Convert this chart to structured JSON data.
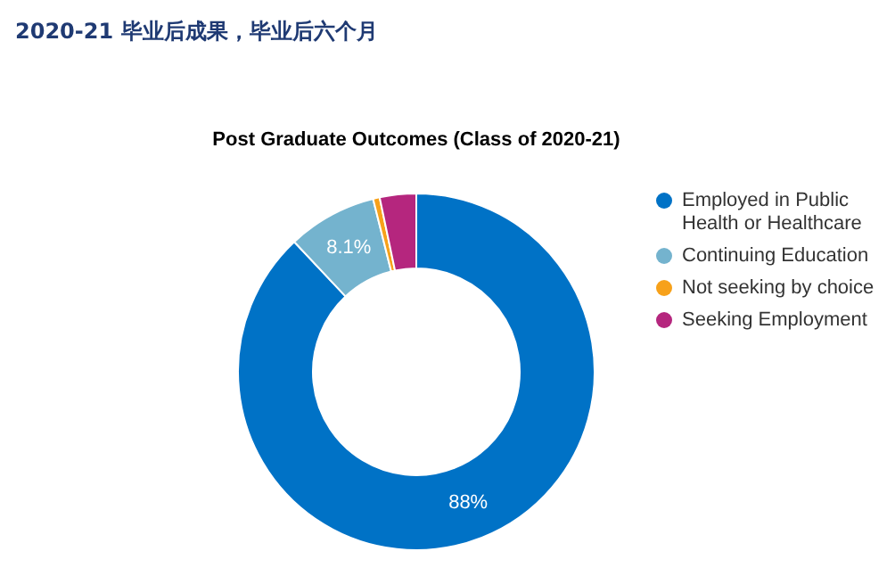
{
  "chart_data": {
    "type": "donut",
    "title": "2020-21 毕业后成果，毕业后六个月",
    "subtitle": "Post Graduate Outcomes (Class of 2020-21)",
    "categories": [
      "Employed in Public Health or Healthcare",
      "Continuing Education",
      "Not seeking by choice",
      "Seeking Employment"
    ],
    "values": [
      88,
      8.1,
      0.6,
      3.3
    ],
    "colors": [
      "#0072c6",
      "#74b3ce",
      "#f7a11a",
      "#b5267e"
    ],
    "value_labels": [
      "88%",
      "8.1%",
      null,
      null
    ],
    "legend": "right"
  }
}
